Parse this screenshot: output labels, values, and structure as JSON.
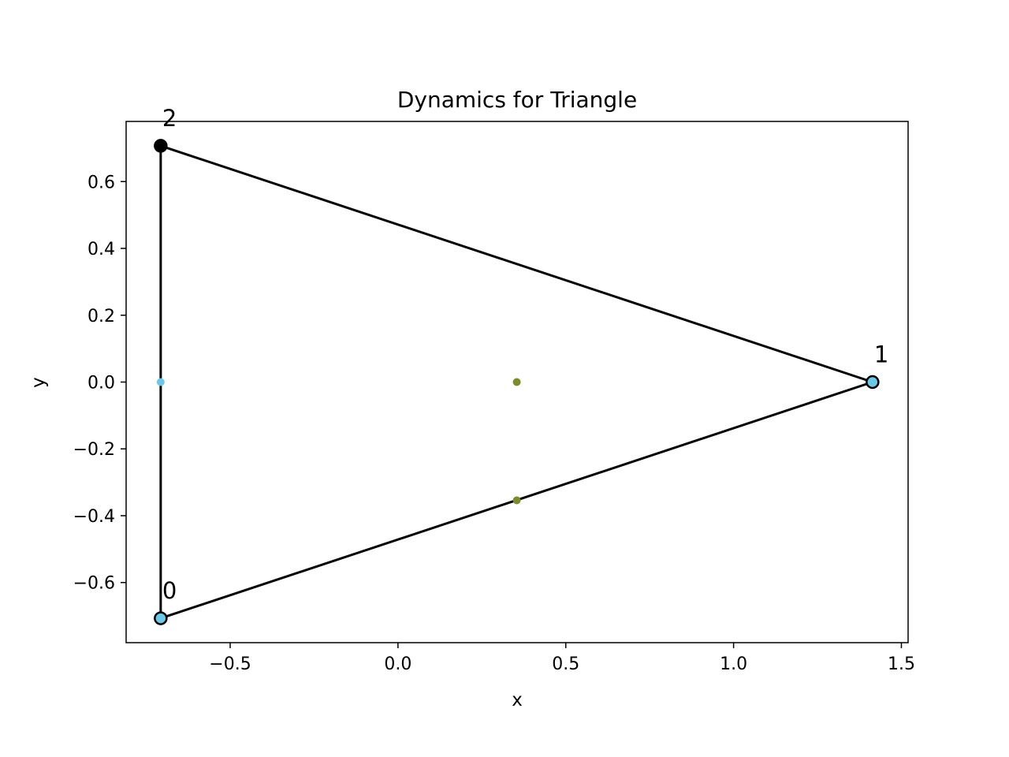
{
  "chart_data": {
    "type": "scatter",
    "title": "Dynamics for Triangle",
    "xlabel": "x",
    "ylabel": "y",
    "xlim": [
      -0.81,
      1.52
    ],
    "ylim": [
      -0.78,
      0.78
    ],
    "grid": false,
    "x_ticks": [
      {
        "value": -0.5,
        "label": "−0.5"
      },
      {
        "value": 0.0,
        "label": "0.0"
      },
      {
        "value": 0.5,
        "label": "0.5"
      },
      {
        "value": 1.0,
        "label": "1.0"
      },
      {
        "value": 1.5,
        "label": "1.5"
      }
    ],
    "y_ticks": [
      {
        "value": -0.6,
        "label": "−0.6"
      },
      {
        "value": -0.4,
        "label": "−0.4"
      },
      {
        "value": -0.2,
        "label": "−0.2"
      },
      {
        "value": 0.0,
        "label": "0.0"
      },
      {
        "value": 0.2,
        "label": "0.2"
      },
      {
        "value": 0.4,
        "label": "0.4"
      },
      {
        "value": 0.6,
        "label": "0.6"
      }
    ],
    "vertices": [
      {
        "label": "0",
        "x": -0.707,
        "y": -0.707,
        "fill": "#6ac8e8"
      },
      {
        "label": "1",
        "x": 1.414,
        "y": 0.0,
        "fill": "#6ac8e8"
      },
      {
        "label": "2",
        "x": -0.707,
        "y": 0.707,
        "fill": "#000000"
      }
    ],
    "edges": [
      [
        0,
        1
      ],
      [
        1,
        2
      ],
      [
        2,
        0
      ]
    ],
    "edge_color": "#000000",
    "particles": [
      {
        "x": -0.707,
        "y": 0.0,
        "color": "#6ac8e8"
      },
      {
        "x": 0.354,
        "y": 0.0,
        "color": "#7d8c28"
      },
      {
        "x": 0.354,
        "y": -0.354,
        "color": "#7d8c28"
      }
    ]
  }
}
